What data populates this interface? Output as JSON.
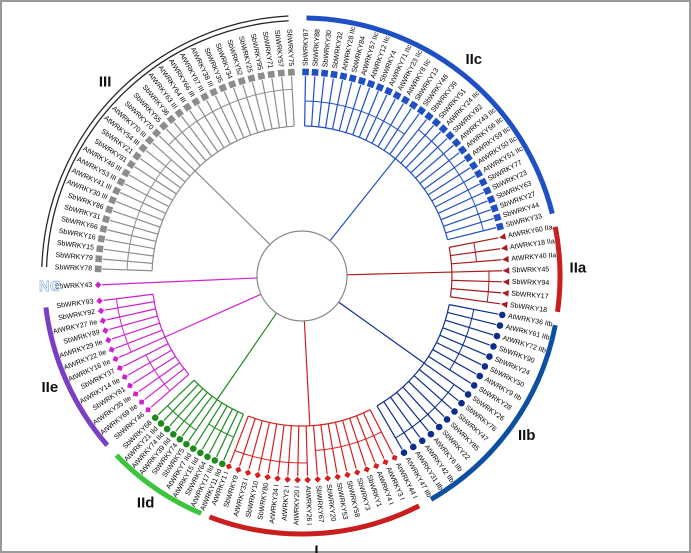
{
  "clades": [
    {
      "name": "IIc",
      "color": "#1f4fc4",
      "leaves": [
        "SbWRKY87",
        "SbWRKY88",
        "SbWRKY30",
        "SbWRKY32",
        "AtWRKY28 IIc",
        "SbWRKY84",
        "AtWRKY57 IIc",
        "AtWRKY12 IIc",
        "SbWRKY4",
        "AtWRKY71 IIc",
        "AtWRKY23 IIc",
        "AtWRKY8 IIc",
        "SbWRKY13",
        "SbWRKY48",
        "SbWRKY39",
        "SbWRKY51",
        "AtWRKY24 IIc",
        "SbWRKY82",
        "AtWRKY43 IIc",
        "AtWRKY56 IIc",
        "AtWRKY59 IIc",
        "AtWRKY50 IIc",
        "AtWRKY51 IIc",
        "SbWRKY77",
        "SbWRKY23",
        "SbWRKY63",
        "SbWRKY27",
        "SbWRKY44",
        "SbWRKY33"
      ]
    },
    {
      "name": "IIa",
      "color": "#a81c1c",
      "leaves": [
        "AtWRKY60 IIa",
        "AtWRKY18 IIa",
        "AtWRKY40 IIa",
        "SbWRKY45",
        "SbWRKY94",
        "SbWRKY17",
        "SbWRKY18"
      ]
    },
    {
      "name": "IIb",
      "color": "#0d2d8a",
      "leaves": [
        "AtWRKY36 IIb",
        "AtWRKY61 IIb",
        "AtWRKY72 IIb",
        "SbWRKY90",
        "SbWRKY24",
        "SbWRKY50",
        "AtWRKY9 IIb",
        "SbWRKY28",
        "SbWRKY26",
        "SbWRKY76",
        "SbWRKY47",
        "SbWRKY85",
        "SbWRKY22",
        "AtWRKY6 IIb",
        "AtWRKY42 IIb",
        "AtWRKY31 IIb",
        "AtWRKY47 IIb"
      ]
    },
    {
      "name": "I",
      "color": "#d42020",
      "leaves": [
        "AtWRKY44 I",
        "AtWRKY3 I",
        "AtWRKY4 I",
        "SbWRKY1",
        "SbWRKY3",
        "SbWRKY58",
        "SbWRKY53",
        "SbWRKY20",
        "SbWRKY67",
        "AtWRKY26 I",
        "AtWRKY20 I",
        "AtWRKY2 I",
        "AtWRKY34 I",
        "SbWRKY80",
        "SbWRKY10",
        "AtWRKY33 I",
        "SbWRKY9",
        "AtWRKY1 I"
      ]
    },
    {
      "name": "IId",
      "color": "#1e8a1e",
      "leaves": [
        "AtWRKY11 IId",
        "AtWRKY17 IId",
        "SbWRKY64",
        "AtWRKY15 IId",
        "AtWRKY7 IId",
        "SbWRKY5",
        "SbWRKY74",
        "AtWRKY39 IId",
        "AtWRKY74 IId",
        "AtWRKY21 IId",
        "SbWRKY68"
      ]
    },
    {
      "name": "IIe",
      "color": "#d020d0",
      "leaves": [
        "SbWRKY46",
        "AtWRKY69 IIe",
        "AtWRKY35 IIe",
        "SbWRKY81",
        "AtWRKY14 IIe",
        "SbWRKY37",
        "AtWRKY16 IIe",
        "AtWRKY22 IIe",
        "AtWRKY29 IIe",
        "SbWRKY89",
        "AtWRKY27 IIe",
        "SbWRKY92",
        "SbWRKY93"
      ]
    },
    {
      "name": "NG",
      "color": "#3a7bd5",
      "leaves": [
        "SbWRKY43"
      ]
    },
    {
      "name": "III",
      "color": "#8c8c8c",
      "leaves": [
        "SbWRKY78",
        "SbWRKY79",
        "SbWRKY15",
        "SbWRKY16",
        "SbWRKY66",
        "SbWRKY31",
        "SbWRKY86",
        "AtWRKY30 III",
        "AtWRKY41 III",
        "AtWRKY53 III",
        "AtWRKY46 III",
        "SbWRKY91",
        "SbWRKY21",
        "AtWRKY54 III",
        "AtWRKY70 III",
        "SbWRKY70",
        "SbWRKY55",
        "SbWRKY36",
        "AtWRKY63 III",
        "AtWRKY64 III",
        "AtWRKY66 III",
        "AtWRKY67 III",
        "AtWRKY38 III",
        "SbWRKY35",
        "SbWRKY34",
        "SbWRKY52",
        "SbWRKY25",
        "SbWRKY95",
        "SbWRKY71",
        "SbWRKY57",
        "SbWRKY75"
      ]
    }
  ]
}
